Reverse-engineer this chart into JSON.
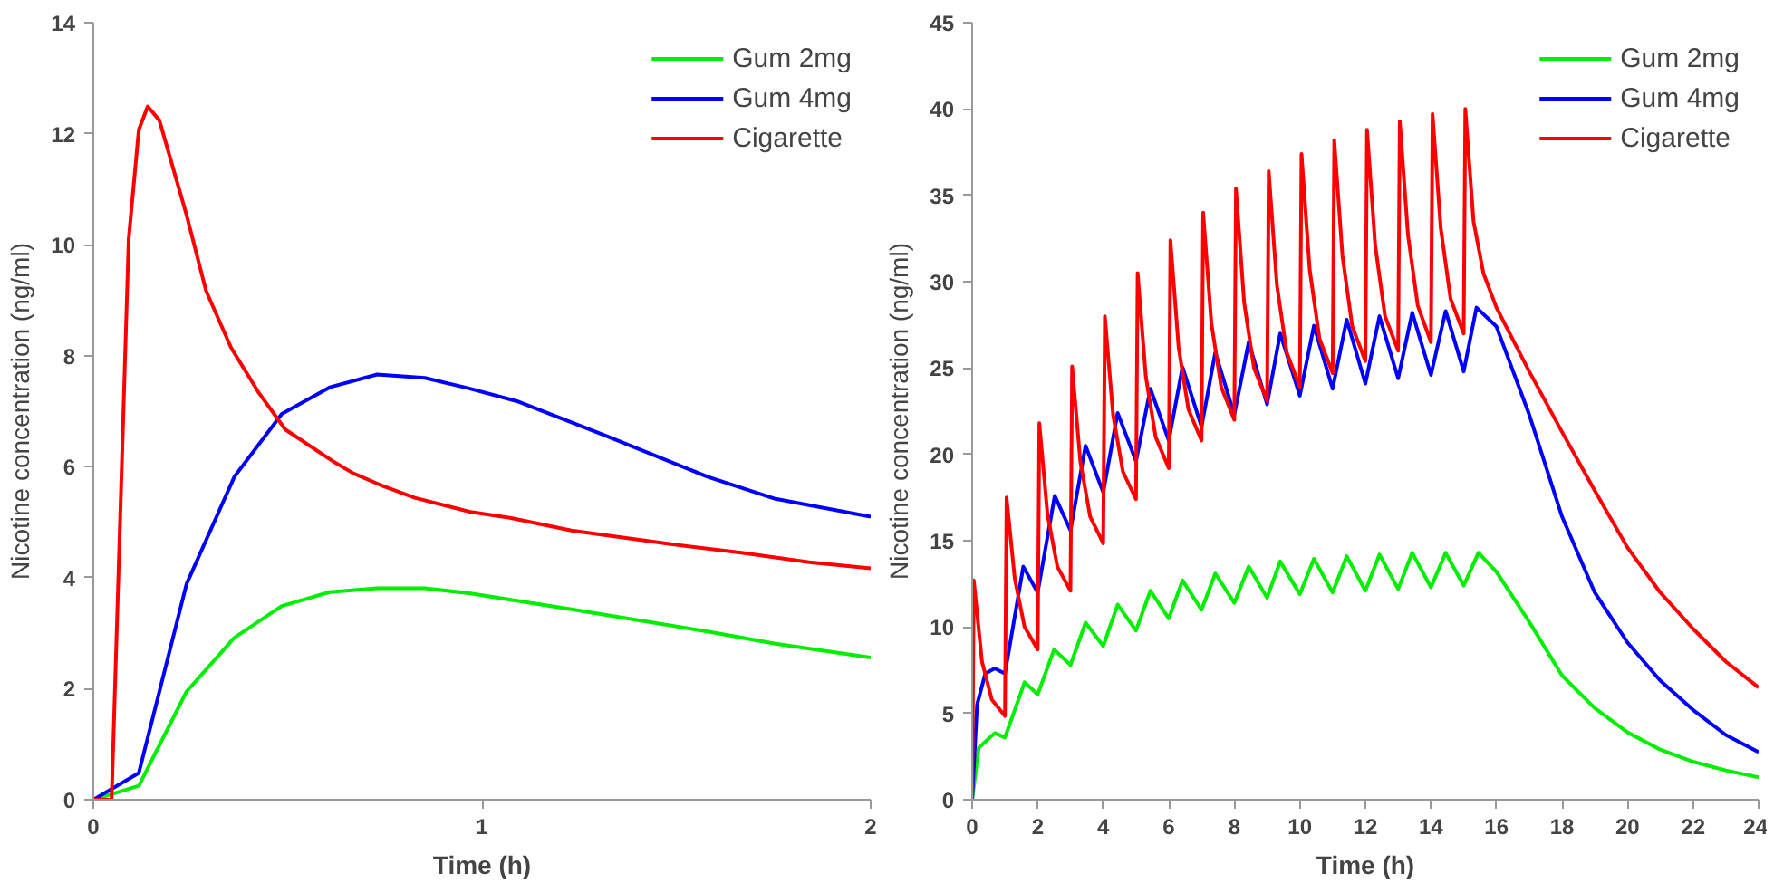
{
  "chart_data": [
    {
      "type": "line",
      "xlabel": "Time (h)",
      "ylabel": "Nicotine concentration (ng/ml)",
      "xlim": [
        0,
        2
      ],
      "xticks": [
        0,
        1,
        2
      ],
      "ylim": [
        0,
        14
      ],
      "yticks": [
        0,
        2,
        4,
        6,
        8,
        10,
        12,
        14
      ],
      "grid": false,
      "legend": "top right",
      "marker": "none",
      "line_style": "solid",
      "series": [
        {
          "name": "Gum 2mg",
          "color": "#00ee00",
          "x": [
            0,
            0.117,
            0.24,
            0.363,
            0.485,
            0.608,
            0.73,
            0.853,
            0.967,
            1.23,
            1.58,
            1.755,
            2
          ],
          "values": [
            0,
            0.25,
            1.95,
            2.92,
            3.49,
            3.74,
            3.81,
            3.81,
            3.72,
            3.43,
            3.03,
            2.81,
            2.56
          ]
        },
        {
          "name": "Gum 4mg",
          "color": "#0000ff",
          "x": [
            0,
            0.117,
            0.24,
            0.363,
            0.485,
            0.608,
            0.73,
            0.853,
            0.967,
            1.09,
            1.317,
            1.58,
            1.755,
            2
          ],
          "values": [
            0,
            0.48,
            3.89,
            5.82,
            6.95,
            7.43,
            7.66,
            7.6,
            7.41,
            7.18,
            6.56,
            5.82,
            5.42,
            5.1
          ]
        },
        {
          "name": "Cigarette",
          "color": "#ff0000",
          "x": [
            0,
            0.047,
            0.091,
            0.117,
            0.14,
            0.17,
            0.24,
            0.29,
            0.354,
            0.424,
            0.494,
            0.616,
            0.669,
            0.739,
            0.827,
            0.967,
            1.072,
            1.23,
            1.49,
            1.667,
            1.842,
            2
          ],
          "values": [
            0,
            0,
            10.1,
            12.07,
            12.49,
            12.24,
            10.53,
            9.17,
            8.15,
            7.35,
            6.67,
            6.1,
            5.88,
            5.67,
            5.44,
            5.19,
            5.08,
            4.85,
            4.6,
            4.45,
            4.28,
            4.17
          ]
        }
      ]
    },
    {
      "type": "line",
      "xlabel": "Time (h)",
      "ylabel": "Nicotine concentration (ng/ml)",
      "xlim": [
        0,
        24
      ],
      "xticks": [
        0,
        2,
        4,
        6,
        8,
        10,
        12,
        14,
        16,
        18,
        20,
        22,
        24
      ],
      "ylim": [
        0,
        45
      ],
      "yticks": [
        0,
        5,
        10,
        15,
        20,
        25,
        30,
        35,
        40,
        45
      ],
      "grid": false,
      "legend": "top right",
      "marker": "none",
      "line_style": "solid",
      "series": [
        {
          "name": "Gum 2mg",
          "color": "#00ee00",
          "x": [
            0,
            0.2,
            0.69,
            1,
            1.6,
            2,
            2.5,
            3,
            3.46,
            4,
            4.44,
            5,
            5.44,
            6,
            6.42,
            7,
            7.42,
            8,
            8.44,
            9,
            9.4,
            10,
            10.43,
            11,
            11.43,
            12,
            12.43,
            13,
            13.43,
            14,
            14.45,
            15,
            15.45,
            16,
            17,
            18,
            19,
            20,
            21,
            22,
            23,
            24
          ],
          "values": [
            0,
            3.0,
            3.86,
            3.6,
            6.8,
            6.1,
            8.7,
            7.8,
            10.25,
            8.9,
            11.3,
            9.8,
            12.1,
            10.5,
            12.7,
            11.0,
            13.1,
            11.4,
            13.5,
            11.7,
            13.8,
            11.9,
            13.95,
            12.0,
            14.1,
            12.1,
            14.2,
            12.2,
            14.3,
            12.3,
            14.3,
            12.4,
            14.3,
            13.2,
            10.3,
            7.2,
            5.3,
            3.9,
            2.9,
            2.2,
            1.7,
            1.3
          ]
        },
        {
          "name": "Gum 4mg",
          "color": "#0000ff",
          "x": [
            0,
            0.15,
            0.4,
            0.69,
            1,
            1.56,
            2,
            2.52,
            3,
            3.46,
            4,
            4.44,
            5,
            5.44,
            6,
            6.42,
            7,
            7.42,
            8,
            8.44,
            9,
            9.4,
            10,
            10.43,
            11,
            11.43,
            12,
            12.43,
            13,
            13.43,
            14,
            14.45,
            15,
            15.39,
            16,
            17,
            18,
            19,
            20,
            21,
            22,
            23,
            24
          ],
          "values": [
            0,
            5.5,
            7.3,
            7.6,
            7.3,
            13.5,
            12.0,
            17.6,
            15.6,
            20.5,
            17.8,
            22.4,
            19.6,
            23.8,
            20.8,
            25.05,
            21.6,
            25.9,
            22.3,
            26.5,
            22.9,
            27.0,
            23.4,
            27.45,
            23.8,
            27.8,
            24.1,
            28.0,
            24.4,
            28.2,
            24.6,
            28.3,
            24.8,
            28.5,
            27.4,
            22.3,
            16.4,
            12.0,
            9.1,
            6.9,
            5.2,
            3.75,
            2.75
          ]
        },
        {
          "name": "Cigarette",
          "color": "#ff0000",
          "x": [
            0,
            0.05,
            0.3,
            0.6,
            1,
            1.05,
            1.3,
            1.6,
            2,
            2.05,
            2.3,
            2.6,
            3,
            3.05,
            3.3,
            3.6,
            4,
            4.05,
            4.3,
            4.6,
            5,
            5.05,
            5.3,
            5.6,
            6,
            6.05,
            6.3,
            6.6,
            7,
            7.05,
            7.3,
            7.6,
            8,
            8.05,
            8.3,
            8.6,
            9,
            9.05,
            9.3,
            9.6,
            10,
            10.05,
            10.3,
            10.6,
            11,
            11.05,
            11.3,
            11.6,
            12,
            12.05,
            12.3,
            12.6,
            13,
            13.05,
            13.3,
            13.6,
            14,
            14.05,
            14.3,
            14.6,
            15,
            15.05,
            15.3,
            15.6,
            16,
            17,
            18,
            19,
            20,
            21,
            22,
            23,
            24
          ],
          "values": [
            0,
            12.7,
            8.0,
            5.8,
            4.85,
            17.5,
            12.8,
            10.0,
            8.7,
            21.8,
            16.5,
            13.5,
            12.1,
            25.1,
            19.6,
            16.4,
            14.85,
            28.0,
            22.3,
            19.0,
            17.4,
            30.5,
            24.5,
            21.0,
            19.2,
            32.4,
            26.2,
            22.6,
            20.8,
            34.0,
            27.6,
            23.9,
            22.0,
            35.4,
            28.8,
            25.0,
            23.1,
            36.4,
            29.8,
            25.9,
            23.9,
            37.4,
            30.7,
            26.7,
            24.7,
            38.2,
            31.5,
            27.4,
            25.4,
            38.8,
            32.1,
            28.0,
            26.0,
            39.3,
            32.7,
            28.6,
            26.5,
            39.7,
            33.1,
            29.0,
            27.0,
            40.0,
            33.5,
            30.5,
            28.5,
            24.8,
            21.3,
            17.9,
            14.6,
            12.0,
            9.9,
            8.0,
            6.5
          ]
        }
      ]
    }
  ]
}
